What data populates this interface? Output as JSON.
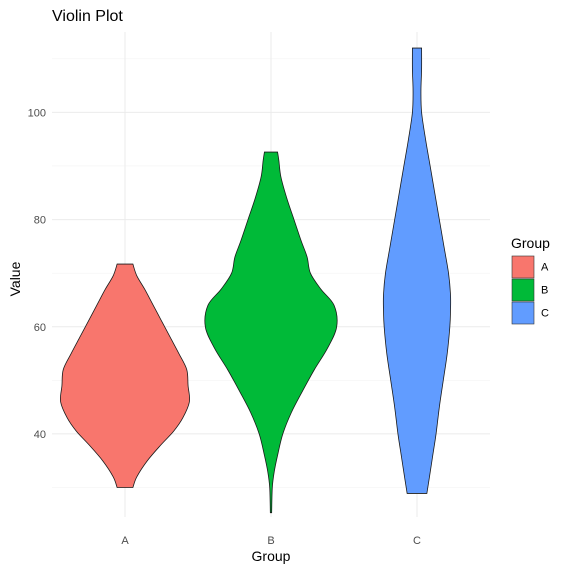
{
  "chart_data": {
    "type": "violin",
    "title": "Violin Plot",
    "xlabel": "Group",
    "ylabel": "Value",
    "categories": [
      "A",
      "B",
      "C"
    ],
    "y_ticks": [
      40,
      60,
      80,
      100
    ],
    "ylim": [
      24.5,
      115
    ],
    "grid": true,
    "legend": {
      "title": "Group",
      "position": "right",
      "entries": [
        "A",
        "B",
        "C"
      ]
    },
    "colors": {
      "A": "#F8766D",
      "B": "#00BA38",
      "C": "#619CFF"
    },
    "series": [
      {
        "name": "A",
        "min": 30.0,
        "max": 71.7,
        "density_profile": [
          [
            30.0,
            0.12
          ],
          [
            32.0,
            0.18
          ],
          [
            35.0,
            0.34
          ],
          [
            38.0,
            0.55
          ],
          [
            40.5,
            0.74
          ],
          [
            43.0,
            0.88
          ],
          [
            46.0,
            0.98
          ],
          [
            49.0,
            0.96
          ],
          [
            52.0,
            0.94
          ],
          [
            55.0,
            0.82
          ],
          [
            58.0,
            0.69
          ],
          [
            61.0,
            0.56
          ],
          [
            64.0,
            0.43
          ],
          [
            67.0,
            0.3
          ],
          [
            69.5,
            0.18
          ],
          [
            71.7,
            0.12
          ]
        ]
      },
      {
        "name": "B",
        "min": 25.3,
        "max": 92.6,
        "density_profile": [
          [
            25.3,
            0.01
          ],
          [
            30.0,
            0.02
          ],
          [
            33.0,
            0.05
          ],
          [
            36.0,
            0.1
          ],
          [
            40.0,
            0.18
          ],
          [
            44.0,
            0.31
          ],
          [
            48.0,
            0.48
          ],
          [
            52.0,
            0.66
          ],
          [
            56.0,
            0.86
          ],
          [
            60.0,
            1.0
          ],
          [
            64.0,
            0.96
          ],
          [
            67.0,
            0.76
          ],
          [
            70.0,
            0.6
          ],
          [
            73.0,
            0.55
          ],
          [
            76.0,
            0.46
          ],
          [
            80.0,
            0.35
          ],
          [
            84.0,
            0.24
          ],
          [
            88.0,
            0.15
          ],
          [
            91.0,
            0.12
          ],
          [
            92.6,
            0.1
          ]
        ]
      },
      {
        "name": "C",
        "min": 28.9,
        "max": 112.0,
        "density_profile": [
          [
            28.9,
            0.15
          ],
          [
            32.0,
            0.19
          ],
          [
            36.0,
            0.24
          ],
          [
            40.0,
            0.29
          ],
          [
            45.0,
            0.34
          ],
          [
            50.0,
            0.4
          ],
          [
            55.0,
            0.46
          ],
          [
            60.0,
            0.5
          ],
          [
            63.0,
            0.51
          ],
          [
            66.0,
            0.51
          ],
          [
            70.0,
            0.48
          ],
          [
            75.0,
            0.41
          ],
          [
            80.0,
            0.34
          ],
          [
            85.0,
            0.27
          ],
          [
            90.0,
            0.2
          ],
          [
            95.0,
            0.13
          ],
          [
            100.0,
            0.07
          ],
          [
            104.0,
            0.06
          ],
          [
            108.0,
            0.07
          ],
          [
            112.0,
            0.07
          ]
        ]
      }
    ]
  }
}
